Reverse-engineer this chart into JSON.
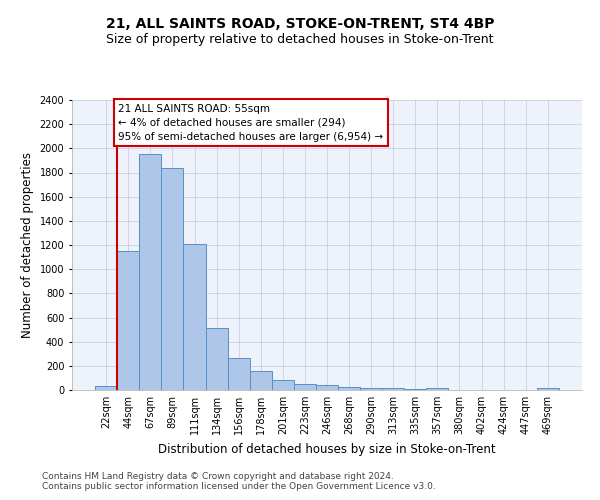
{
  "title1": "21, ALL SAINTS ROAD, STOKE-ON-TRENT, ST4 4BP",
  "title2": "Size of property relative to detached houses in Stoke-on-Trent",
  "xlabel": "Distribution of detached houses by size in Stoke-on-Trent",
  "ylabel": "Number of detached properties",
  "bin_labels": [
    "22sqm",
    "44sqm",
    "67sqm",
    "89sqm",
    "111sqm",
    "134sqm",
    "156sqm",
    "178sqm",
    "201sqm",
    "223sqm",
    "246sqm",
    "268sqm",
    "290sqm",
    "313sqm",
    "335sqm",
    "357sqm",
    "380sqm",
    "402sqm",
    "424sqm",
    "447sqm",
    "469sqm"
  ],
  "bar_values": [
    30,
    1150,
    1950,
    1840,
    1210,
    510,
    265,
    155,
    80,
    50,
    45,
    25,
    20,
    15,
    10,
    20,
    0,
    0,
    0,
    0,
    20
  ],
  "bar_color": "#aec6e8",
  "bar_edge_color": "#5590c8",
  "annotation_text": "21 ALL SAINTS ROAD: 55sqm\n← 4% of detached houses are smaller (294)\n95% of semi-detached houses are larger (6,954) →",
  "annotation_box_color": "#ffffff",
  "annotation_box_edge": "#cc0000",
  "vline_color": "#cc0000",
  "ylim": [
    0,
    2400
  ],
  "yticks": [
    0,
    200,
    400,
    600,
    800,
    1000,
    1200,
    1400,
    1600,
    1800,
    2000,
    2200,
    2400
  ],
  "footer1": "Contains HM Land Registry data © Crown copyright and database right 2024.",
  "footer2": "Contains public sector information licensed under the Open Government Licence v3.0.",
  "bg_color": "#eef2fb",
  "grid_color": "#c8d0e8",
  "title1_fontsize": 10,
  "title2_fontsize": 9,
  "axis_label_fontsize": 8.5,
  "tick_fontsize": 7,
  "footer_fontsize": 6.5
}
